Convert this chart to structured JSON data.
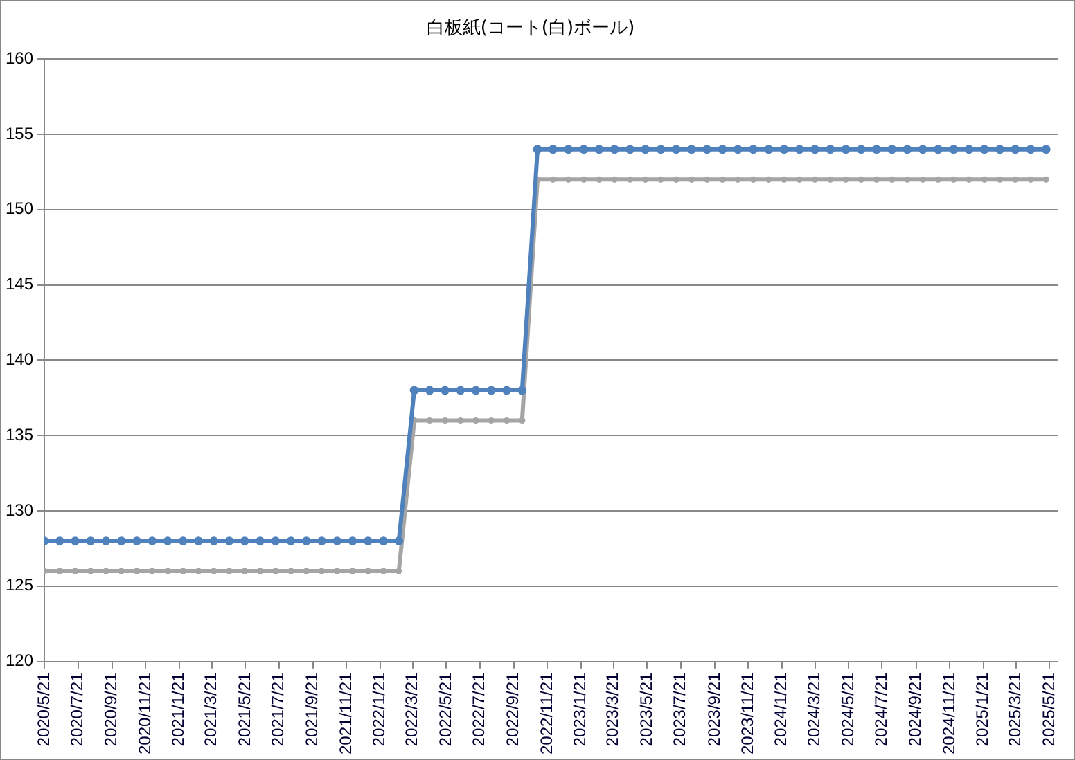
{
  "chart_data": {
    "type": "line",
    "title": "白板紙(コート(白)ボール)",
    "x": [
      "2020-05-21",
      "2020-06-18",
      "2020-07-16",
      "2020-08-13",
      "2020-09-10",
      "2020-10-08",
      "2020-11-05",
      "2020-12-03",
      "2020-12-31",
      "2021-01-28",
      "2021-02-25",
      "2021-03-25",
      "2021-04-22",
      "2021-05-20",
      "2021-06-17",
      "2021-07-15",
      "2021-08-12",
      "2021-09-09",
      "2021-10-07",
      "2021-11-04",
      "2021-12-02",
      "2021-12-30",
      "2022-01-27",
      "2022-02-24",
      "2022-03-24",
      "2022-04-21",
      "2022-05-19",
      "2022-06-16",
      "2022-07-14",
      "2022-08-11",
      "2022-09-08",
      "2022-10-06",
      "2022-11-03",
      "2022-12-01",
      "2022-12-29",
      "2023-01-26",
      "2023-02-23",
      "2023-03-23",
      "2023-04-20",
      "2023-05-18",
      "2023-06-15",
      "2023-07-13",
      "2023-08-10",
      "2023-09-07",
      "2023-10-05",
      "2023-11-02",
      "2023-11-30",
      "2023-12-28",
      "2024-01-25",
      "2024-02-22",
      "2024-03-21",
      "2024-04-18",
      "2024-05-16",
      "2024-06-13",
      "2024-07-11",
      "2024-08-08",
      "2024-09-05",
      "2024-10-03",
      "2024-10-31",
      "2024-11-28",
      "2024-12-26",
      "2025-01-23",
      "2025-02-20",
      "2025-03-20",
      "2025-04-17",
      "2025-05-15"
    ],
    "series": [
      {
        "color": "#a5a5a5",
        "values": [
          126,
          126,
          126,
          126,
          126,
          126,
          126,
          126,
          126,
          126,
          126,
          126,
          126,
          126,
          126,
          126,
          126,
          126,
          126,
          126,
          126,
          126,
          126,
          126,
          136,
          136,
          136,
          136,
          136,
          136,
          136,
          136,
          152,
          152,
          152,
          152,
          152,
          152,
          152,
          152,
          152,
          152,
          152,
          152,
          152,
          152,
          152,
          152,
          152,
          152,
          152,
          152,
          152,
          152,
          152,
          152,
          152,
          152,
          152,
          152,
          152,
          152,
          152,
          152,
          152,
          152
        ]
      },
      {
        "color": "#4f81bd",
        "values": [
          128,
          128,
          128,
          128,
          128,
          128,
          128,
          128,
          128,
          128,
          128,
          128,
          128,
          128,
          128,
          128,
          128,
          128,
          128,
          128,
          128,
          128,
          128,
          128,
          138,
          138,
          138,
          138,
          138,
          138,
          138,
          138,
          154,
          154,
          154,
          154,
          154,
          154,
          154,
          154,
          154,
          154,
          154,
          154,
          154,
          154,
          154,
          154,
          154,
          154,
          154,
          154,
          154,
          154,
          154,
          154,
          154,
          154,
          154,
          154,
          154,
          154,
          154,
          154,
          154,
          154
        ]
      }
    ],
    "xlim": [
      "2020-05-21",
      "2025-06-05"
    ],
    "xticks": [
      {
        "value": "2020-05-21",
        "label": "2020/5/21"
      },
      {
        "value": "2020-07-21",
        "label": "2020/7/21"
      },
      {
        "value": "2020-09-21",
        "label": "2020/9/21"
      },
      {
        "value": "2020-11-21",
        "label": "2020/11/21"
      },
      {
        "value": "2021-01-21",
        "label": "2021/1/21"
      },
      {
        "value": "2021-03-21",
        "label": "2021/3/21"
      },
      {
        "value": "2021-05-21",
        "label": "2021/5/21"
      },
      {
        "value": "2021-07-21",
        "label": "2021/7/21"
      },
      {
        "value": "2021-09-21",
        "label": "2021/9/21"
      },
      {
        "value": "2021-11-21",
        "label": "2021/11/21"
      },
      {
        "value": "2022-01-21",
        "label": "2022/1/21"
      },
      {
        "value": "2022-03-21",
        "label": "2022/3/21"
      },
      {
        "value": "2022-05-21",
        "label": "2022/5/21"
      },
      {
        "value": "2022-07-21",
        "label": "2022/7/21"
      },
      {
        "value": "2022-09-21",
        "label": "2022/9/21"
      },
      {
        "value": "2022-11-21",
        "label": "2022/11/21"
      },
      {
        "value": "2023-01-21",
        "label": "2023/1/21"
      },
      {
        "value": "2023-03-21",
        "label": "2023/3/21"
      },
      {
        "value": "2023-05-21",
        "label": "2023/5/21"
      },
      {
        "value": "2023-07-21",
        "label": "2023/7/21"
      },
      {
        "value": "2023-09-21",
        "label": "2023/9/21"
      },
      {
        "value": "2023-11-21",
        "label": "2023/11/21"
      },
      {
        "value": "2024-01-21",
        "label": "2024/1/21"
      },
      {
        "value": "2024-03-21",
        "label": "2024/3/21"
      },
      {
        "value": "2024-05-21",
        "label": "2024/5/21"
      },
      {
        "value": "2024-07-21",
        "label": "2024/7/21"
      },
      {
        "value": "2024-09-21",
        "label": "2024/9/21"
      },
      {
        "value": "2024-11-21",
        "label": "2024/11/21"
      },
      {
        "value": "2025-01-21",
        "label": "2025/1/21"
      },
      {
        "value": "2025-03-21",
        "label": "2025/3/21"
      },
      {
        "value": "2025-05-21",
        "label": "2025/5/21"
      }
    ],
    "ylim": [
      120,
      160
    ],
    "yticks": [
      120,
      125,
      130,
      135,
      140,
      145,
      150,
      155,
      160
    ],
    "grid": "y",
    "legend": false,
    "marker": "circle",
    "line_style": "solid"
  }
}
